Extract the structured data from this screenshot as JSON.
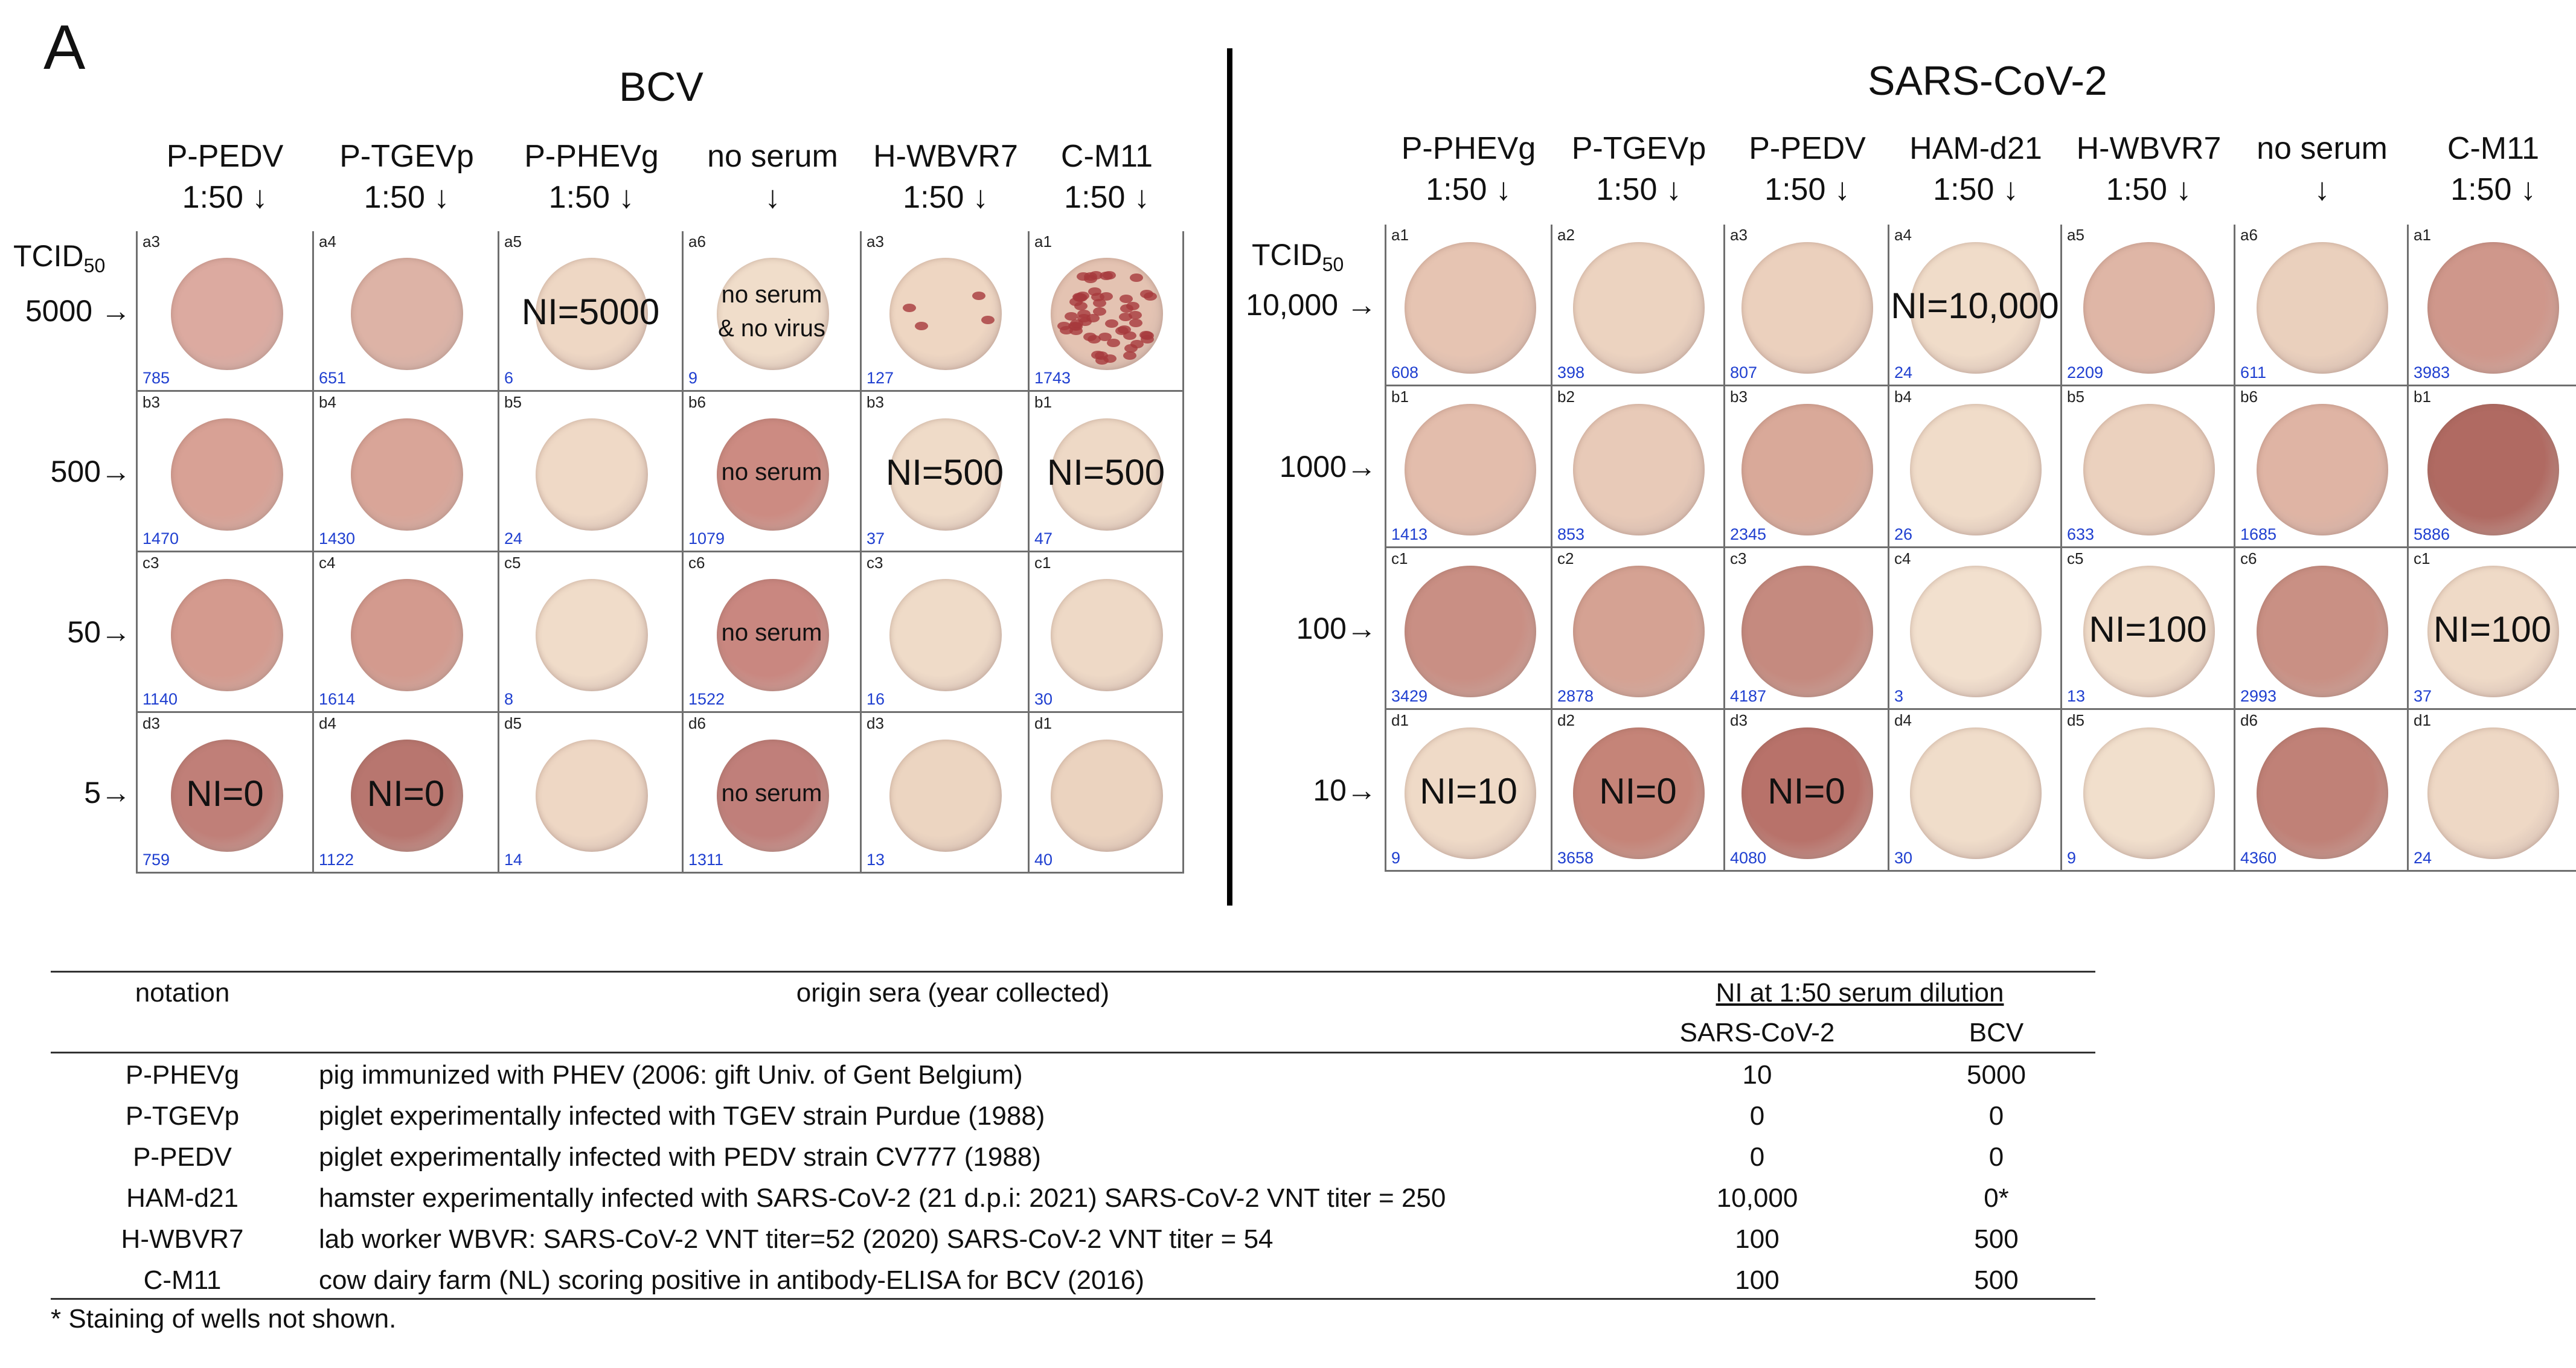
{
  "panel_label": "A",
  "bcv": {
    "title": "BCV",
    "tcid_label": "TCID",
    "tcid_sub": "50",
    "columns": [
      {
        "name": "P-PEDV",
        "dilution": "1:50 ↓"
      },
      {
        "name": "P-TGEVp",
        "dilution": "1:50 ↓"
      },
      {
        "name": "P-PHEVg",
        "dilution": "1:50 ↓"
      },
      {
        "name": "no serum",
        "dilution": "↓"
      },
      {
        "name": "H-WBVR7",
        "dilution": "1:50 ↓"
      },
      {
        "name": "C-M11",
        "dilution": "1:50 ↓"
      }
    ],
    "rows": [
      "5000 →",
      "500→",
      "50→",
      "5→"
    ],
    "cells": [
      [
        {
          "code": "a3",
          "count": "785",
          "overlay": "",
          "color": "#dcaaa0"
        },
        {
          "code": "a4",
          "count": "651",
          "overlay": "",
          "color": "#ddb3a6"
        },
        {
          "code": "a5",
          "count": "6",
          "overlay": "NI=5000",
          "color": "#eed7c4"
        },
        {
          "code": "a6",
          "count": "9",
          "overlay": "no serum\n& no virus",
          "color": "#f0ddca"
        },
        {
          "code": "a3",
          "count": "127",
          "overlay": "",
          "color": "#eed6c2"
        },
        {
          "code": "a1",
          "count": "1743",
          "overlay": "",
          "color": "#e4c3b2"
        }
      ],
      [
        {
          "code": "b3",
          "count": "1470",
          "overlay": "",
          "color": "#d8a195"
        },
        {
          "code": "b4",
          "count": "1430",
          "overlay": "",
          "color": "#d9a598"
        },
        {
          "code": "b5",
          "count": "24",
          "overlay": "",
          "color": "#efd9c6"
        },
        {
          "code": "b6",
          "count": "1079",
          "overlay": "no serum",
          "color": "#cc8b82"
        },
        {
          "code": "b3",
          "count": "37",
          "overlay": "NI=500",
          "color": "#efdbc8"
        },
        {
          "code": "b1",
          "count": "47",
          "overlay": "NI=500",
          "color": "#eed9c6"
        }
      ],
      [
        {
          "code": "c3",
          "count": "1140",
          "overlay": "",
          "color": "#d49a8e"
        },
        {
          "code": "c4",
          "count": "1614",
          "overlay": "",
          "color": "#d39a8e"
        },
        {
          "code": "c5",
          "count": "8",
          "overlay": "",
          "color": "#f0dcc9"
        },
        {
          "code": "c6",
          "count": "1522",
          "overlay": "no serum",
          "color": "#c98780"
        },
        {
          "code": "c3",
          "count": "16",
          "overlay": "",
          "color": "#efdbc8"
        },
        {
          "code": "c1",
          "count": "30",
          "overlay": "",
          "color": "#eed9c6"
        }
      ],
      [
        {
          "code": "d3",
          "count": "759",
          "overlay": "NI=0",
          "color": "#c07f78"
        },
        {
          "code": "d4",
          "count": "1122",
          "overlay": "NI=0",
          "color": "#b8766f"
        },
        {
          "code": "d5",
          "count": "14",
          "overlay": "",
          "color": "#eed7c4"
        },
        {
          "code": "d6",
          "count": "1311",
          "overlay": "no serum",
          "color": "#c07f7a"
        },
        {
          "code": "d3",
          "count": "13",
          "overlay": "",
          "color": "#ecd5c1"
        },
        {
          "code": "d1",
          "count": "40",
          "overlay": "",
          "color": "#ebd3bf"
        }
      ]
    ]
  },
  "sars": {
    "title": "SARS-CoV-2",
    "tcid_label": "TCID",
    "tcid_sub": "50",
    "columns": [
      {
        "name": "P-PHEVg",
        "dilution": "1:50 ↓"
      },
      {
        "name": "P-TGEVp",
        "dilution": "1:50 ↓"
      },
      {
        "name": "P-PEDV",
        "dilution": "1:50 ↓"
      },
      {
        "name": "HAM-d21",
        "dilution": "1:50 ↓"
      },
      {
        "name": "H-WBVR7",
        "dilution": "1:50 ↓"
      },
      {
        "name": "no serum",
        "dilution": "↓"
      },
      {
        "name": "C-M11",
        "dilution": "1:50 ↓"
      }
    ],
    "rows": [
      "10,000 →",
      "1000→",
      "100→",
      "10→"
    ],
    "cells": [
      [
        {
          "code": "a1",
          "count": "608",
          "overlay": "",
          "color": "#e6c4b2"
        },
        {
          "code": "a2",
          "count": "398",
          "overlay": "",
          "color": "#ecd3c0"
        },
        {
          "code": "a3",
          "count": "807",
          "overlay": "",
          "color": "#ebd0bd"
        },
        {
          "code": "a4",
          "count": "24",
          "overlay": "NI=10,000",
          "color": "#f0dcc9"
        },
        {
          "code": "a5",
          "count": "2209",
          "overlay": "",
          "color": "#dfb6a6"
        },
        {
          "code": "a6",
          "count": "611",
          "overlay": "",
          "color": "#ead0bd"
        },
        {
          "code": "a1",
          "count": "3983",
          "overlay": "",
          "color": "#cf978b"
        }
      ],
      [
        {
          "code": "b1",
          "count": "1413",
          "overlay": "",
          "color": "#e3bdac"
        },
        {
          "code": "b2",
          "count": "853",
          "overlay": "",
          "color": "#e8cab8"
        },
        {
          "code": "b3",
          "count": "2345",
          "overlay": "",
          "color": "#d9a999"
        },
        {
          "code": "b4",
          "count": "26",
          "overlay": "",
          "color": "#f0dcc9"
        },
        {
          "code": "b5",
          "count": "633",
          "overlay": "",
          "color": "#ebd1be"
        },
        {
          "code": "b6",
          "count": "1685",
          "overlay": "",
          "color": "#dfb4a4"
        },
        {
          "code": "b1",
          "count": "5886",
          "overlay": "",
          "color": "#b06a62"
        }
      ],
      [
        {
          "code": "c1",
          "count": "3429",
          "overlay": "",
          "color": "#c98f84"
        },
        {
          "code": "c2",
          "count": "2878",
          "overlay": "",
          "color": "#d5a293"
        },
        {
          "code": "c3",
          "count": "4187",
          "overlay": "",
          "color": "#c58a7f"
        },
        {
          "code": "c4",
          "count": "3",
          "overlay": "",
          "color": "#f2e0ce"
        },
        {
          "code": "c5",
          "count": "13",
          "overlay": "NI=100",
          "color": "#f0dcc9"
        },
        {
          "code": "c6",
          "count": "2993",
          "overlay": "",
          "color": "#c99084"
        },
        {
          "code": "c1",
          "count": "37",
          "overlay": "NI=100",
          "color": "#efdac7"
        }
      ],
      [
        {
          "code": "d1",
          "count": "9",
          "overlay": "NI=10",
          "color": "#efdac7"
        },
        {
          "code": "d2",
          "count": "3658",
          "overlay": "NI=0",
          "color": "#c58478"
        },
        {
          "code": "d3",
          "count": "4080",
          "overlay": "NI=0",
          "color": "#b8726a"
        },
        {
          "code": "d4",
          "count": "30",
          "overlay": "",
          "color": "#f0ddca"
        },
        {
          "code": "d5",
          "count": "9",
          "overlay": "",
          "color": "#f1dfcc"
        },
        {
          "code": "d6",
          "count": "4360",
          "overlay": "",
          "color": "#c08177"
        },
        {
          "code": "d1",
          "count": "24",
          "overlay": "",
          "color": "#eed8c5"
        }
      ]
    ]
  },
  "table": {
    "headers": {
      "notation": "notation",
      "origin": "origin sera (year collected)",
      "ni": "NI at 1:50 serum dilution",
      "sars": "SARS-CoV-2",
      "bcv": "BCV"
    },
    "rows": [
      {
        "notation": "P-PHEVg",
        "origin": "pig immunized with PHEV (2006: gift Univ. of Gent Belgium)",
        "sars": "10",
        "bcv": "5000"
      },
      {
        "notation": "P-TGEVp",
        "origin": "piglet experimentally infected with TGEV strain Purdue (1988)",
        "sars": "0",
        "bcv": "0"
      },
      {
        "notation": "P-PEDV",
        "origin": "piglet experimentally infected with PEDV strain CV777 (1988)",
        "sars": "0",
        "bcv": "0"
      },
      {
        "notation": "HAM-d21",
        "origin": "hamster experimentally infected with SARS-CoV-2 (21 d.p.i: 2021) SARS-CoV-2 VNT titer = 250",
        "sars": "10,000",
        "bcv": "0*"
      },
      {
        "notation": "H-WBVR7",
        "origin": "lab worker WBVR: SARS-CoV-2 VNT titer=52 (2020) SARS-CoV-2 VNT titer = 54",
        "sars": "100",
        "bcv": "500"
      },
      {
        "notation": "C-M11",
        "origin": "cow dairy farm (NL) scoring positive in antibody-ELISA for BCV (2016)",
        "sars": "100",
        "bcv": "500"
      }
    ],
    "footnote": "* Staining of wells not shown."
  }
}
